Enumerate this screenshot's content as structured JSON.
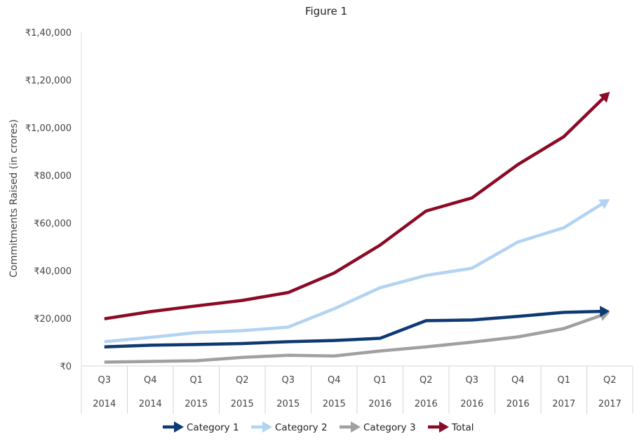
{
  "chart_data": {
    "type": "line",
    "title": "Figure 1",
    "ylabel": "Commitments Raised (in crores)",
    "xlabel": "",
    "ylim": [
      0,
      140000
    ],
    "yticks": [
      0,
      20000,
      40000,
      60000,
      80000,
      100000,
      120000,
      140000
    ],
    "ytick_labels": [
      "₹0",
      "₹20,000",
      "₹40,000",
      "₹60,000",
      "₹80,000",
      "₹1,00,000",
      "₹1,20,000",
      "₹1,40,000"
    ],
    "categories": [
      {
        "quarter": "Q3",
        "year": "2014"
      },
      {
        "quarter": "Q4",
        "year": "2014"
      },
      {
        "quarter": "Q1",
        "year": "2015"
      },
      {
        "quarter": "Q2",
        "year": "2015"
      },
      {
        "quarter": "Q3",
        "year": "2015"
      },
      {
        "quarter": "Q4",
        "year": "2015"
      },
      {
        "quarter": "Q1",
        "year": "2016"
      },
      {
        "quarter": "Q2",
        "year": "2016"
      },
      {
        "quarter": "Q3",
        "year": "2016"
      },
      {
        "quarter": "Q4",
        "year": "2016"
      },
      {
        "quarter": "Q1",
        "year": "2017"
      },
      {
        "quarter": "Q2",
        "year": "2017"
      }
    ],
    "grid": false,
    "legend_position": "bottom",
    "series": [
      {
        "name": "Category 1",
        "color": "#0d3a73",
        "values": [
          8000,
          8700,
          9000,
          9400,
          10200,
          10700,
          11600,
          19000,
          19300,
          20800,
          22500,
          23000
        ]
      },
      {
        "name": "Category 2",
        "color": "#b3d3f2",
        "values": [
          10200,
          12000,
          14000,
          14800,
          16300,
          24000,
          32800,
          38000,
          41000,
          52000,
          58000,
          70000
        ]
      },
      {
        "name": "Category 3",
        "color": "#a0a0a0",
        "values": [
          1600,
          1900,
          2200,
          3600,
          4500,
          4200,
          6300,
          8000,
          10000,
          12200,
          15700,
          22500
        ]
      },
      {
        "name": "Total",
        "color": "#8b0a26",
        "values": [
          19800,
          22800,
          25200,
          27500,
          30800,
          39000,
          50700,
          65000,
          70500,
          84500,
          96200,
          115000
        ]
      }
    ]
  }
}
